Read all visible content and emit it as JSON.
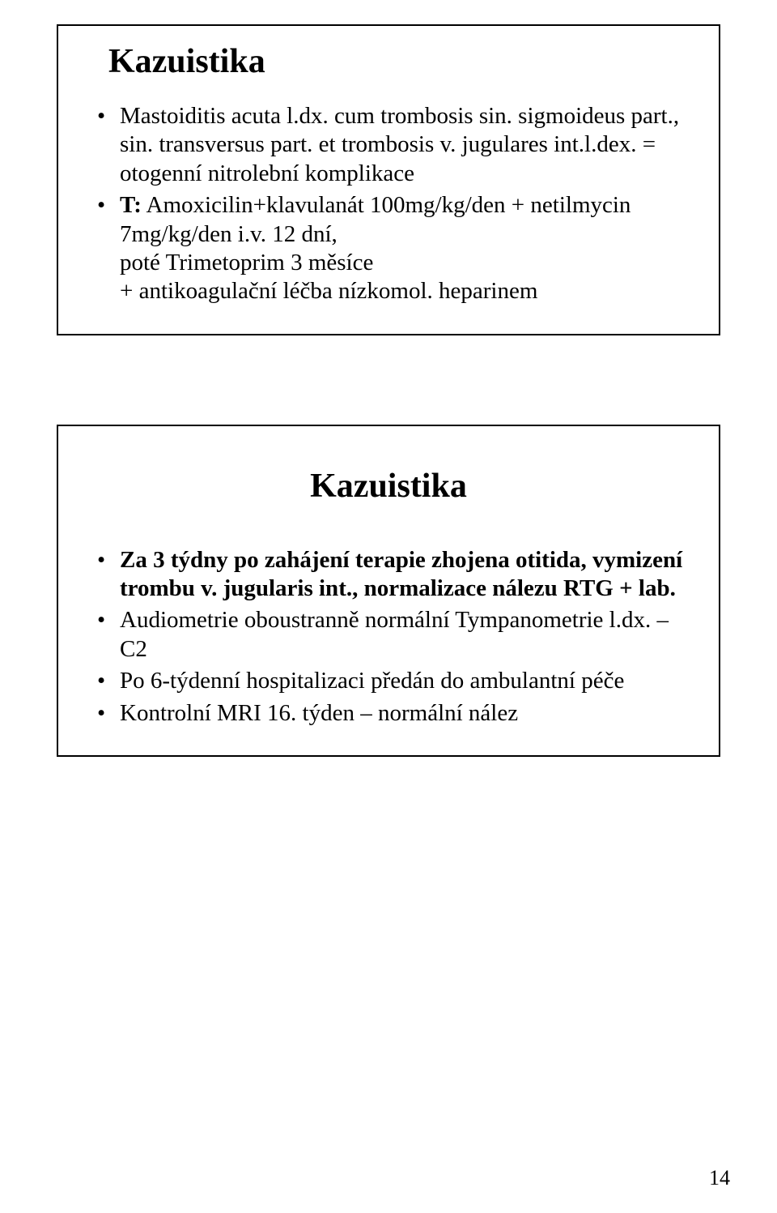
{
  "page": {
    "number": "14"
  },
  "slide1": {
    "title": "Kazuistika",
    "bullets": [
      {
        "lines": [
          "Mastoiditis acuta l.dx. cum trombosis sin. sigmoideus part., sin. transversus part. et trombosis v. jugulares int.l.dex. = otogenní nitrolební komplikace"
        ]
      },
      {
        "bold_prefix": "T:",
        "rest": " Amoxicilin+klavulanát 100mg/kg/den + netilmycin 7mg/kg/den i.v. 12 dní,",
        "cont": [
          "poté Trimetoprim 3 měsíce",
          "+ antikoagulační léčba nízkomol. heparinem"
        ]
      }
    ]
  },
  "slide2": {
    "title": "Kazuistika",
    "bullets": [
      {
        "bold_line": "Za 3 týdny po zahájení terapie zhojena otitida, vymizení trombu v. jugularis int., normalizace nálezu RTG + lab."
      },
      {
        "plain": "Audiometrie oboustranně normální Tympanometrie l.dx. – C2"
      },
      {
        "plain": "Po 6-týdenní hospitalizaci předán do ambulantní péče"
      },
      {
        "plain": "Kontrolní MRI 16. týden – normální nález"
      }
    ]
  }
}
